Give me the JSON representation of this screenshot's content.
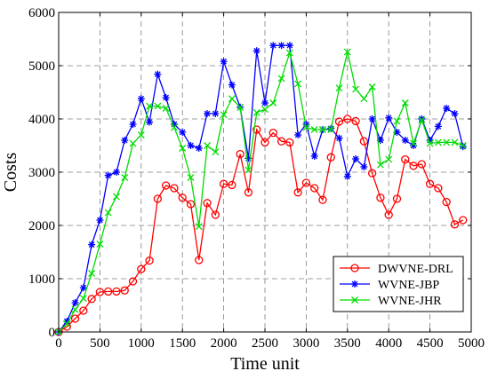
{
  "chart_data": {
    "type": "line",
    "xlabel": "Time unit",
    "ylabel": "Costs",
    "xlim": [
      0,
      5000
    ],
    "ylim": [
      0,
      6000
    ],
    "xticks": [
      0,
      500,
      1000,
      1500,
      2000,
      2500,
      3000,
      3500,
      4000,
      4500,
      5000
    ],
    "yticks": [
      0,
      1000,
      2000,
      3000,
      4000,
      5000,
      6000
    ],
    "grid": true,
    "legend_position": "bottom-right",
    "series": [
      {
        "name": "DWVNE-DRL",
        "color": "#ff0000",
        "marker": "circle",
        "x": [
          0,
          100,
          200,
          300,
          400,
          500,
          600,
          700,
          800,
          900,
          1000,
          1100,
          1200,
          1300,
          1400,
          1500,
          1600,
          1700,
          1800,
          1900,
          2000,
          2100,
          2200,
          2300,
          2400,
          2500,
          2600,
          2700,
          2800,
          2900,
          3000,
          3100,
          3200,
          3300,
          3400,
          3500,
          3600,
          3700,
          3800,
          3900,
          4000,
          4100,
          4200,
          4300,
          4400,
          4500,
          4600,
          4700,
          4800,
          4900
        ],
        "y": [
          0,
          100,
          250,
          400,
          620,
          750,
          760,
          760,
          780,
          950,
          1180,
          1340,
          2500,
          2750,
          2700,
          2520,
          2400,
          1350,
          2420,
          2200,
          2780,
          2760,
          3340,
          2620,
          3800,
          3560,
          3740,
          3580,
          3560,
          2620,
          2800,
          2700,
          2480,
          3280,
          3950,
          4000,
          3960,
          3580,
          2980,
          2520,
          2200,
          2500,
          3240,
          3120,
          3150,
          2780,
          2700,
          2440,
          2020,
          2100
        ]
      },
      {
        "name": "WVNE-JBP",
        "color": "#0000ff",
        "marker": "star",
        "x": [
          0,
          100,
          200,
          300,
          400,
          500,
          600,
          700,
          800,
          900,
          1000,
          1100,
          1200,
          1300,
          1400,
          1500,
          1600,
          1700,
          1800,
          1900,
          2000,
          2100,
          2200,
          2300,
          2400,
          2500,
          2600,
          2700,
          2800,
          2900,
          3000,
          3100,
          3200,
          3300,
          3400,
          3500,
          3600,
          3700,
          3800,
          3900,
          4000,
          4100,
          4200,
          4300,
          4400,
          4500,
          4600,
          4700,
          4800,
          4900
        ],
        "y": [
          0,
          200,
          550,
          830,
          1640,
          2100,
          2940,
          3000,
          3600,
          3900,
          4380,
          3940,
          4840,
          4400,
          3900,
          3750,
          3500,
          3450,
          4100,
          4100,
          5080,
          4640,
          4220,
          3260,
          5280,
          4300,
          5380,
          5380,
          5380,
          3700,
          3900,
          3300,
          3800,
          3820,
          3640,
          2920,
          3250,
          3100,
          4000,
          3600,
          4020,
          3750,
          3600,
          3500,
          4000,
          3600,
          3860,
          4200,
          4100,
          3480
        ]
      },
      {
        "name": "WVNE-JHR",
        "color": "#00dd00",
        "marker": "x",
        "x": [
          0,
          100,
          200,
          300,
          400,
          500,
          600,
          700,
          800,
          900,
          1000,
          1100,
          1200,
          1300,
          1400,
          1500,
          1600,
          1700,
          1800,
          1900,
          2000,
          2100,
          2200,
          2300,
          2400,
          2500,
          2600,
          2700,
          2800,
          2900,
          3000,
          3100,
          3200,
          3300,
          3400,
          3500,
          3600,
          3700,
          3800,
          3900,
          4000,
          4100,
          4200,
          4300,
          4400,
          4500,
          4600,
          4700,
          4800,
          4900
        ],
        "y": [
          0,
          150,
          420,
          630,
          1100,
          1650,
          2240,
          2540,
          2900,
          3540,
          3700,
          4240,
          4240,
          4200,
          3840,
          3450,
          2900,
          1980,
          3500,
          3380,
          4080,
          4380,
          4220,
          3040,
          4120,
          4180,
          4300,
          4760,
          5240,
          4660,
          3840,
          3800,
          3800,
          3800,
          4580,
          5260,
          4560,
          4380,
          4600,
          3140,
          3240,
          3960,
          4300,
          3540,
          3980,
          3540,
          3560,
          3560,
          3560,
          3500
        ]
      }
    ]
  }
}
